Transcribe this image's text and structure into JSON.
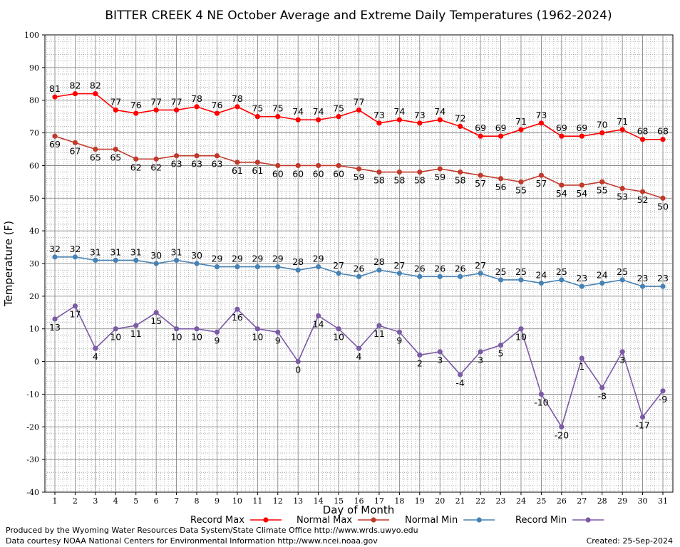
{
  "chart_data": {
    "type": "line",
    "title": "BITTER CREEK 4 NE October Average and Extreme Daily Temperatures (1962-2024)",
    "xlabel": "Day of Month",
    "ylabel": "Temperature (F)",
    "xlim": [
      1,
      31
    ],
    "ylim": [
      -40,
      100
    ],
    "y_ticks": [
      -40,
      -30,
      -20,
      -10,
      0,
      10,
      20,
      30,
      40,
      50,
      60,
      70,
      80,
      90,
      100
    ],
    "x": [
      1,
      2,
      3,
      4,
      5,
      6,
      7,
      8,
      9,
      10,
      11,
      12,
      13,
      14,
      15,
      16,
      17,
      18,
      19,
      20,
      21,
      22,
      23,
      24,
      25,
      26,
      27,
      28,
      29,
      30,
      31
    ],
    "grid": true,
    "legend_position": "bottom",
    "series": [
      {
        "name": "Record Max",
        "color": "#ff0000",
        "values": [
          81,
          82,
          82,
          77,
          76,
          77,
          77,
          78,
          76,
          78,
          75,
          75,
          74,
          74,
          75,
          77,
          73,
          74,
          73,
          74,
          72,
          69,
          69,
          71,
          73,
          69,
          69,
          70,
          71,
          68,
          68
        ]
      },
      {
        "name": "Normal Max",
        "color": "#c0392b",
        "values": [
          69,
          67,
          65,
          65,
          62,
          62,
          63,
          63,
          63,
          61,
          61,
          60,
          60,
          60,
          60,
          59,
          58,
          58,
          58,
          59,
          58,
          57,
          56,
          55,
          57,
          54,
          54,
          55,
          53,
          52,
          50
        ]
      },
      {
        "name": "Normal Min",
        "color": "#4682b4",
        "values": [
          32,
          32,
          31,
          31,
          31,
          30,
          31,
          30,
          29,
          29,
          29,
          29,
          28,
          29,
          27,
          26,
          28,
          27,
          26,
          26,
          26,
          27,
          25,
          25,
          24,
          25,
          23,
          24,
          25,
          23,
          23
        ]
      },
      {
        "name": "Record Min",
        "color": "#7b5aa6",
        "values": [
          13,
          17,
          4,
          10,
          11,
          15,
          10,
          10,
          9,
          16,
          10,
          9,
          0,
          14,
          10,
          4,
          11,
          9,
          2,
          3,
          -4,
          3,
          5,
          10,
          -10,
          -20,
          1,
          -8,
          3,
          -17,
          -9
        ]
      }
    ]
  },
  "footer": {
    "produced_by": "Produced by the Wyoming Water Resources Data System/State Climate Office http://www.wrds.uwyo.edu",
    "data_courtesy": "Data courtesy NOAA National Centers for Environmental Information http://www.ncei.noaa.gov",
    "created": "Created: 25-Sep-2024"
  }
}
